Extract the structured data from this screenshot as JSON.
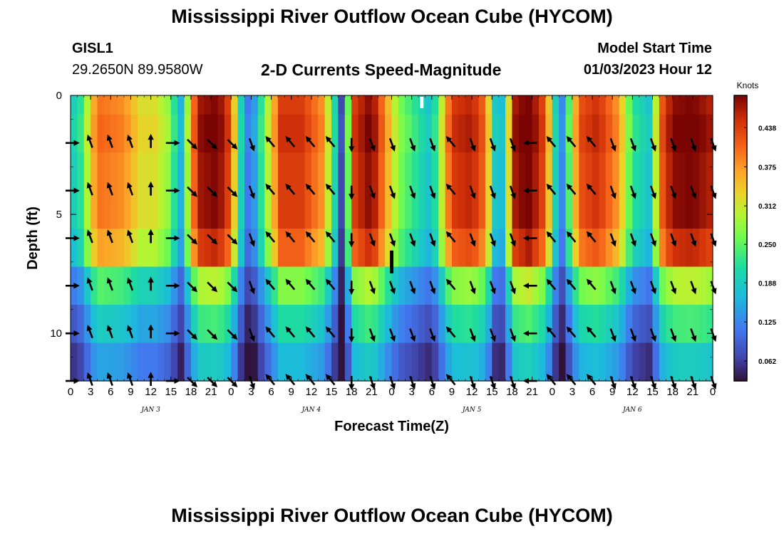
{
  "page_title": "Mississippi River Outflow Ocean Cube (HYCOM)",
  "footer_title": "Mississippi River Outflow Ocean Cube (HYCOM)",
  "station": {
    "id": "GISL1",
    "coords": "29.2650N  89.9580W"
  },
  "model": {
    "label": "Model Start Time",
    "value": "01/03/2023 Hour 12"
  },
  "chart_data": {
    "type": "heatmap",
    "title": "2-D Currents Speed-Magnitude",
    "xlabel": "Forecast Time(Z)",
    "ylabel": "Depth (ft)",
    "x_tick_labels": [
      "0",
      "3",
      "6",
      "9",
      "12",
      "15",
      "18",
      "21",
      "0",
      "3",
      "6",
      "9",
      "12",
      "15",
      "18",
      "21",
      "0",
      "3",
      "6",
      "9",
      "12",
      "15",
      "18",
      "21",
      "0",
      "3",
      "6",
      "9",
      "12",
      "15",
      "18",
      "21",
      "0"
    ],
    "x_range_hours": [
      0,
      96
    ],
    "date_labels": [
      {
        "label": "JAN 3",
        "hour": 12
      },
      {
        "label": "JAN 4",
        "hour": 36
      },
      {
        "label": "JAN 5",
        "hour": 60
      },
      {
        "label": "JAN 6",
        "hour": 84
      }
    ],
    "y_tick_labels": [
      "0",
      "5",
      "10"
    ],
    "y_ticks": [
      0,
      5,
      10
    ],
    "ylim": [
      0,
      12
    ],
    "y_inverted": true,
    "depths_ft": [
      0,
      2,
      4,
      6,
      8,
      10,
      12
    ],
    "colorbar": {
      "unit": "Knots",
      "ticks": [
        "0.438",
        "0.375",
        "0.312",
        "0.250",
        "0.188",
        "0.125",
        "0.062"
      ],
      "tick_values": [
        0.438,
        0.375,
        0.312,
        0.25,
        0.188,
        0.125,
        0.062
      ],
      "range": [
        0.03,
        0.49
      ]
    },
    "speed_profile_knots": {
      "hours": [
        0,
        1.5,
        4,
        8,
        10.5,
        12.5,
        14.5,
        16.5,
        19,
        22,
        24,
        25.2,
        26.8,
        28.5,
        31.5,
        34.5,
        37.5,
        39,
        40.5,
        42.5,
        45,
        47,
        49,
        51.5,
        54,
        57,
        60,
        62,
        63.2,
        64,
        64.8,
        66.5,
        68.5,
        71,
        72.2,
        73.2,
        74.3,
        76,
        78.8,
        82,
        84,
        86.5,
        88.5,
        90,
        93,
        96
      ],
      "values": [
        0.16,
        0.2,
        0.38,
        0.36,
        0.3,
        0.3,
        0.26,
        0.14,
        0.45,
        0.47,
        0.4,
        0.2,
        0.07,
        0.2,
        0.42,
        0.42,
        0.36,
        0.25,
        0.05,
        0.42,
        0.47,
        0.36,
        0.25,
        0.2,
        0.15,
        0.42,
        0.44,
        0.38,
        0.22,
        0.07,
        0.2,
        0.45,
        0.48,
        0.4,
        0.22,
        0.07,
        0.2,
        0.4,
        0.43,
        0.35,
        0.2,
        0.16,
        0.4,
        0.46,
        0.47,
        0.44
      ]
    },
    "depth_factor": [
      1.0,
      1.0,
      1.0,
      1.0,
      0.95,
      0.62,
      0.52,
      0.46
    ],
    "surface_speed_offset_knots": [
      0.02,
      0.03,
      0.02,
      0.02,
      0.01,
      0.0,
      -0.02,
      -0.04
    ],
    "vector_hours": [
      0,
      3,
      6,
      9,
      12,
      15,
      18,
      21,
      24,
      27,
      30,
      33,
      36,
      39,
      42,
      45,
      48,
      51,
      54,
      57,
      60,
      63,
      66,
      69,
      72,
      75,
      78,
      81,
      84,
      87,
      90,
      93,
      96
    ],
    "vector_depths_ft": [
      2,
      4,
      6,
      8,
      10,
      12
    ],
    "vector_directions_deg": [
      90,
      340,
      340,
      340,
      0,
      90,
      135,
      135,
      135,
      160,
      320,
      320,
      320,
      320,
      180,
      160,
      160,
      160,
      160,
      320,
      160,
      160,
      160,
      270,
      320,
      320,
      320,
      160,
      160,
      160,
      160,
      160,
      160
    ],
    "surface_markers": [
      {
        "hour": 52.5,
        "depth_ft": 0.3,
        "color": "#ffffff"
      },
      {
        "hour": 48,
        "depth_ft": 7,
        "color": "#000000"
      }
    ]
  }
}
